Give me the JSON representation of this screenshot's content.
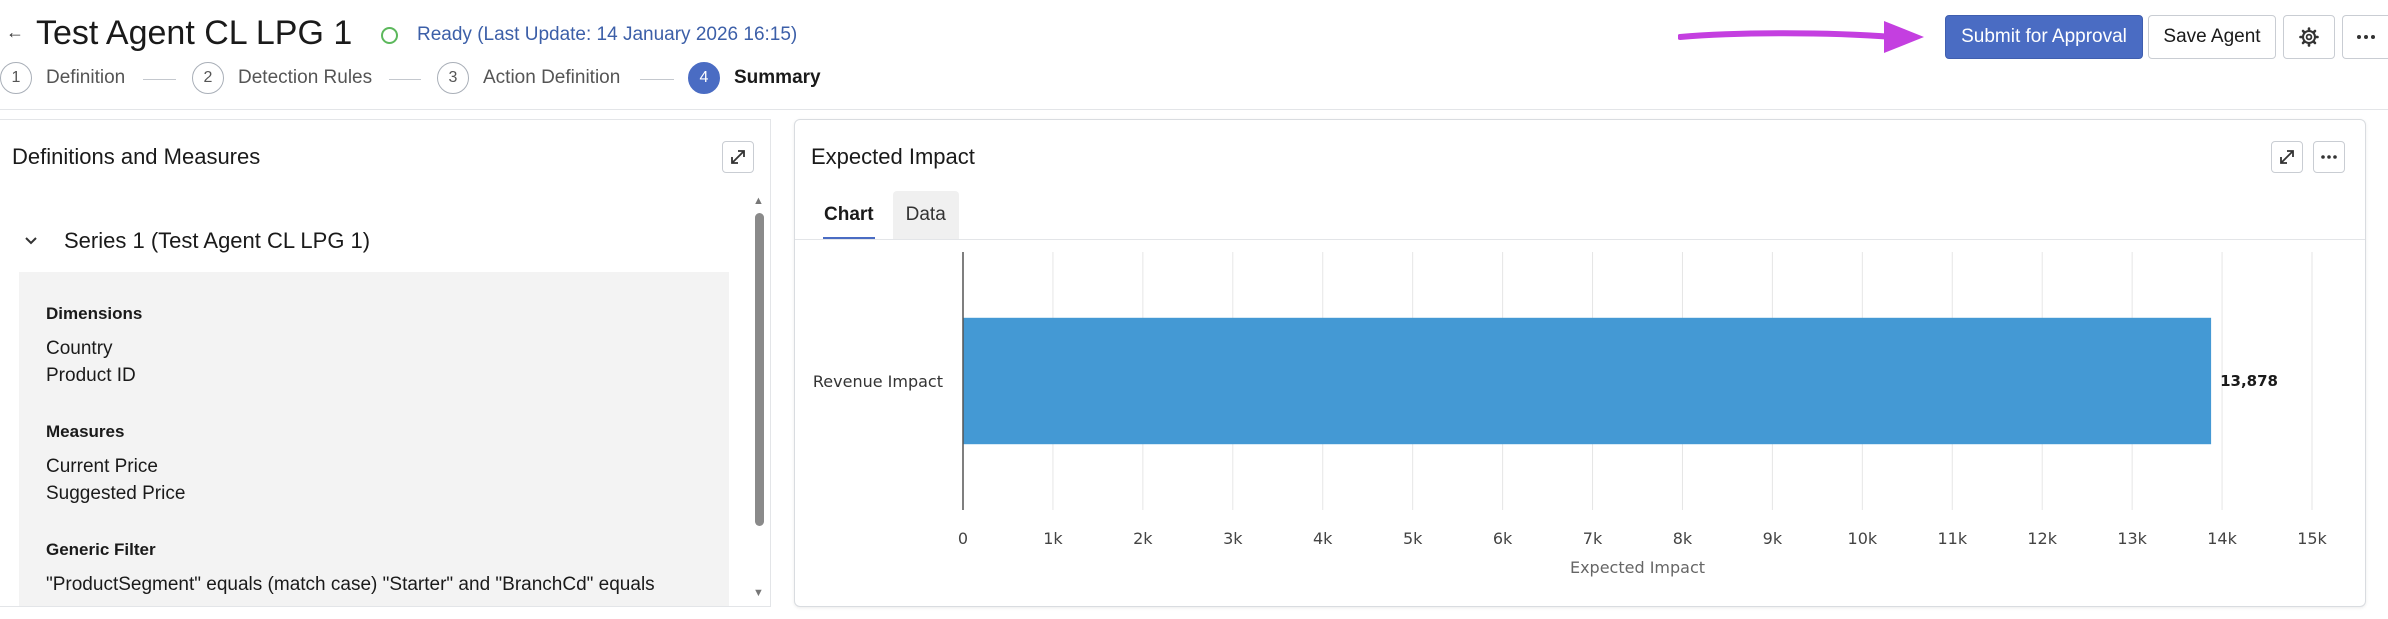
{
  "header": {
    "back_icon": "arrow-left-icon",
    "title": "Test Agent CL LPG 1",
    "status": "Ready (Last Update: 14 January 2026 16:15)",
    "status_color": "#5cb85c",
    "steps": [
      {
        "number": "1",
        "label": "Definition"
      },
      {
        "number": "2",
        "label": "Detection Rules"
      },
      {
        "number": "3",
        "label": "Action Definition"
      },
      {
        "number": "4",
        "label": "Summary",
        "active": true
      }
    ],
    "submit_label": "Submit for Approval",
    "save_label": "Save Agent",
    "settings_icon": "gear-icon",
    "more_icon": "more-horizontal-icon",
    "annotation_arrow_color": "#c43fe0"
  },
  "left_panel": {
    "title": "Definitions and Measures",
    "series_title": "Series 1 (Test Agent CL LPG 1)",
    "sections": {
      "dimensions": {
        "heading": "Dimensions",
        "items": [
          "Country",
          "Product ID"
        ]
      },
      "measures": {
        "heading": "Measures",
        "items": [
          "Current Price",
          "Suggested Price"
        ]
      },
      "generic_filter": {
        "heading": "Generic Filter",
        "text": "\"ProductSegment\" equals (match case) \"Starter\" and \"BranchCd\" equals"
      }
    }
  },
  "right_panel": {
    "title": "Expected Impact",
    "tabs": [
      "Chart",
      "Data"
    ],
    "active_tab": "Chart"
  },
  "chart_data": {
    "type": "bar",
    "orientation": "horizontal",
    "categories": [
      "Revenue Impact"
    ],
    "values": [
      13878
    ],
    "value_labels": [
      "13,878"
    ],
    "xlabel": "Expected Impact",
    "ylabel": "",
    "xlim": [
      0,
      15000
    ],
    "x_ticks": [
      0,
      1000,
      2000,
      3000,
      4000,
      5000,
      6000,
      7000,
      8000,
      9000,
      10000,
      11000,
      12000,
      13000,
      14000,
      15000
    ],
    "x_tick_labels": [
      "0",
      "1k",
      "2k",
      "3k",
      "4k",
      "5k",
      "6k",
      "7k",
      "8k",
      "9k",
      "10k",
      "11k",
      "12k",
      "13k",
      "14k",
      "15k"
    ],
    "grid": true,
    "bar_color": "#4499d4"
  }
}
